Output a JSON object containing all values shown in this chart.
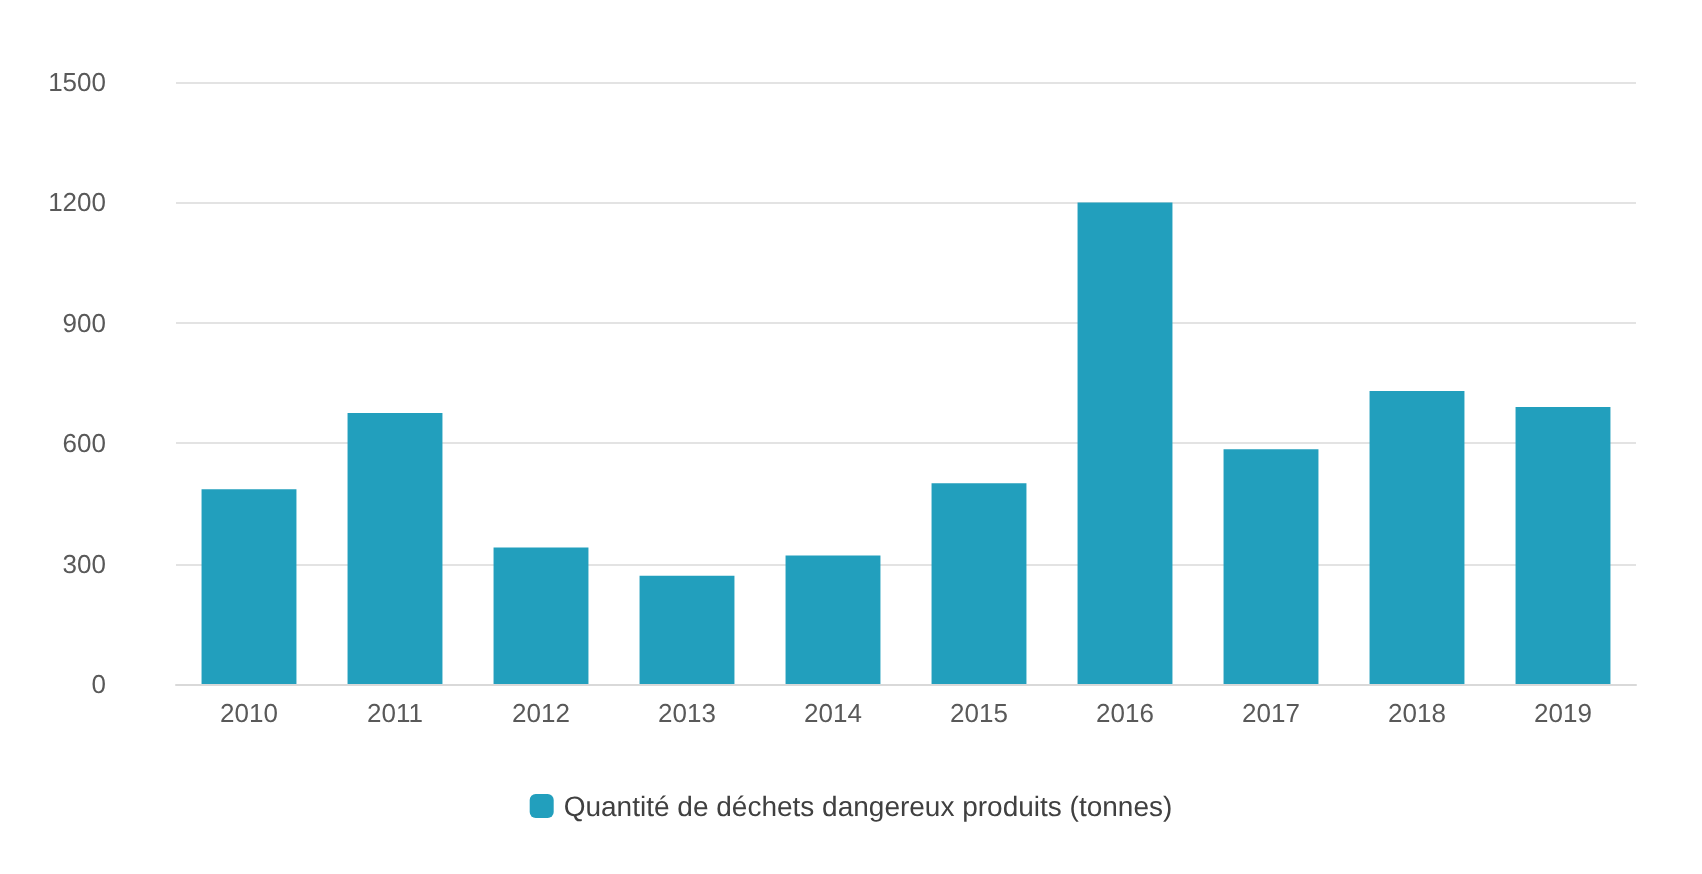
{
  "chart_data": {
    "type": "bar",
    "categories": [
      "2010",
      "2011",
      "2012",
      "2013",
      "2014",
      "2015",
      "2016",
      "2017",
      "2018",
      "2019"
    ],
    "series": [
      {
        "name": "Quantité de déchets dangereux produits (tonnes)",
        "color": "#229fbd",
        "values": [
          485,
          675,
          340,
          270,
          320,
          500,
          1200,
          585,
          730,
          690
        ]
      }
    ],
    "ylim": [
      0,
      1500
    ],
    "yticks": [
      0,
      300,
      600,
      900,
      1200,
      1500
    ],
    "grid": "y",
    "legend": "bottom"
  }
}
